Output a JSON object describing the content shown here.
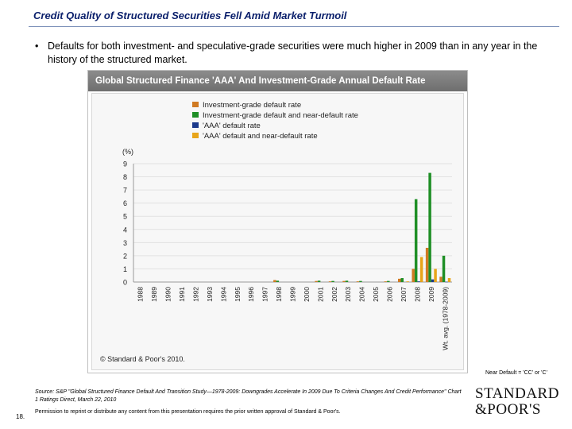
{
  "slide": {
    "title": "Credit Quality of Structured Securities Fell Amid Market Turmoil",
    "bullet_symbol": "•",
    "bullet": "Defaults for both investment- and speculative-grade securities were much higher in 2009 than in any year in the history of the structured market.",
    "near_default_note": "Near Default = 'CC' or 'C'",
    "source": "Source: S&P \"Global Structured Finance Default And Transition Study—1978-2009: Downgrades Accelerate In 2009 Due To Criteria Changes And Credit Performance\" Chart 1 Ratings Direct, March 22, 2010",
    "permission": "Permission to reprint or distribute any content from this presentation requires the prior written approval of Standard & Poor's.",
    "page_number": "18.",
    "logo_line1": "STANDARD",
    "logo_line2": "&POOR'S"
  },
  "colors": {
    "ig_default": "#d07a22",
    "ig_near_default": "#1f8f26",
    "aaa_default": "#1c3a8c",
    "aaa_near_default": "#e8a51a"
  },
  "chart_data": {
    "type": "bar",
    "title": "Global Structured Finance 'AAA' And Investment-Grade Annual Default Rate",
    "ylabel": "(%)",
    "xlabel": "",
    "ylim": [
      0,
      9
    ],
    "yticks": [
      0,
      1,
      2,
      3,
      4,
      5,
      6,
      7,
      8,
      9
    ],
    "grid": true,
    "legend_position": "top-left",
    "copyright": "© Standard & Poor's 2010.",
    "categories": [
      "1988",
      "1989",
      "1990",
      "1991",
      "1992",
      "1993",
      "1994",
      "1995",
      "1996",
      "1997",
      "1998",
      "1999",
      "2000",
      "2001",
      "2002",
      "2003",
      "2004",
      "2005",
      "2006",
      "2007",
      "2008",
      "2009",
      "Wt. avg. (1978-2009)"
    ],
    "series": [
      {
        "name": "Investment-grade default rate",
        "color_key": "ig_default",
        "values": [
          0,
          0,
          0,
          0,
          0,
          0,
          0,
          0,
          0,
          0,
          0.15,
          0,
          0,
          0.08,
          0.05,
          0.08,
          0.05,
          0,
          0.05,
          0.25,
          1.0,
          2.6,
          0.4
        ]
      },
      {
        "name": "Investment-grade default and near-default rate",
        "color_key": "ig_near_default",
        "values": [
          0,
          0,
          0,
          0,
          0,
          0,
          0,
          0,
          0,
          0,
          0.1,
          0,
          0,
          0.1,
          0.08,
          0.1,
          0.08,
          0,
          0.08,
          0.3,
          6.3,
          8.3,
          2.0
        ]
      },
      {
        "name": "'AAA' default rate",
        "color_key": "aaa_default",
        "values": [
          0,
          0,
          0,
          0,
          0,
          0,
          0,
          0,
          0,
          0,
          0,
          0,
          0,
          0,
          0,
          0,
          0,
          0,
          0,
          0,
          0.05,
          0.2,
          0.02
        ]
      },
      {
        "name": "'AAA' default and near-default rate",
        "color_key": "aaa_near_default",
        "values": [
          0,
          0,
          0,
          0,
          0,
          0,
          0,
          0,
          0,
          0,
          0,
          0,
          0,
          0,
          0,
          0,
          0,
          0,
          0,
          0.05,
          1.9,
          1.0,
          0.3
        ]
      }
    ]
  }
}
